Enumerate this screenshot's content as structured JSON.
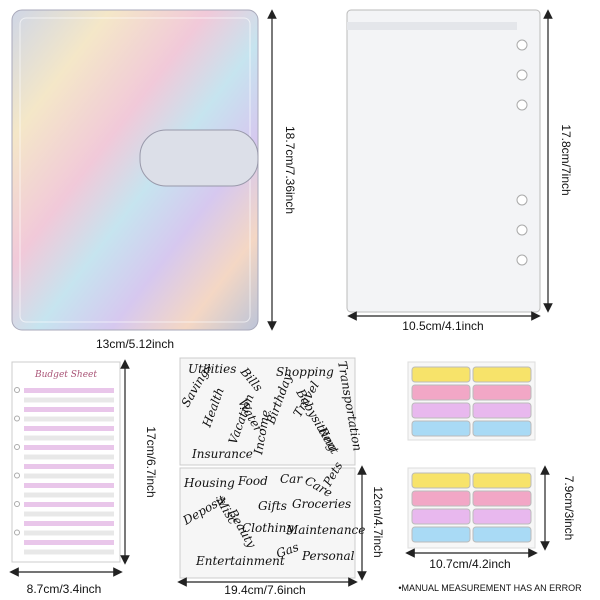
{
  "binder": {
    "height": "18.7cm/7.36inch",
    "width": "13cm/5.12inch"
  },
  "pouch": {
    "height": "17.8cm/7inch",
    "width": "10.5cm/4.1inch"
  },
  "budget_sheet": {
    "title": "Budget Sheet",
    "height": "17cm/6.7inch",
    "width": "8.7cm/3.4inch"
  },
  "stickers": {
    "sheet_1": [
      "Utilities",
      "Bills",
      "Shopping",
      "Transportation",
      "Savings",
      "Health",
      "Water",
      "Vacation",
      "Birthday",
      "Babysitting",
      "Rent",
      "Insurance",
      "Income",
      "Travel"
    ],
    "sheet_2": [
      "Housing",
      "Food",
      "Car",
      "Care",
      "Pets",
      "Misc",
      "Gifts",
      "Groceries",
      "Deposit",
      "Beauty",
      "Clothing",
      "Maintenance",
      "Entertainment",
      "Gas",
      "Personal"
    ],
    "height": "12cm/4.7inch",
    "width": "19.4cm/7.6inch"
  },
  "tabs": {
    "height": "7.9cm/3inch",
    "width": "10.7cm/4.2inch"
  },
  "note": "•MANUAL MEASUREMENT HAS AN ERROR"
}
